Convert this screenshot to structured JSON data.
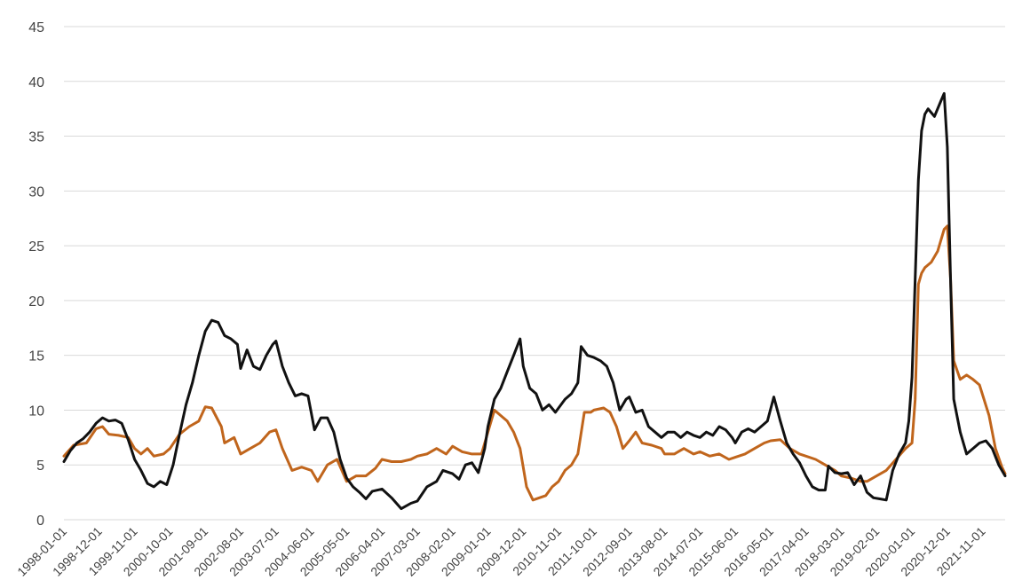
{
  "chart_data": {
    "type": "line",
    "title": "",
    "xlabel": "",
    "ylabel": "",
    "ylim": [
      0,
      45
    ],
    "y_ticks": [
      0,
      5,
      10,
      15,
      20,
      25,
      30,
      35,
      40,
      45
    ],
    "grid": "horizontal",
    "x_range": [
      "1998-01-01",
      "2022-06-01"
    ],
    "x_tick_labels": [
      "1998-01-01",
      "1998-12-01",
      "1999-11-01",
      "2000-10-01",
      "2001-09-01",
      "2002-08-01",
      "2003-07-01",
      "2004-06-01",
      "2005-05-01",
      "2006-04-01",
      "2007-03-01",
      "2008-02-01",
      "2009-01-01",
      "2009-12-01",
      "2010-11-01",
      "2011-10-01",
      "2012-09-01",
      "2013-08-01",
      "2014-07-01",
      "2015-06-01",
      "2016-05-01",
      "2017-04-01",
      "2018-03-01",
      "2019-02-01",
      "2020-01-01",
      "2020-12-01",
      "2021-11-01"
    ],
    "series": [
      {
        "color": "#111111",
        "points": [
          [
            "1998-01-01",
            5.3
          ],
          [
            "1998-03-01",
            6.3
          ],
          [
            "1998-05-01",
            7.0
          ],
          [
            "1998-07-01",
            7.4
          ],
          [
            "1998-09-01",
            8.0
          ],
          [
            "1998-11-01",
            8.8
          ],
          [
            "1999-01-01",
            9.3
          ],
          [
            "1999-03-01",
            9.0
          ],
          [
            "1999-05-01",
            9.1
          ],
          [
            "1999-07-01",
            8.8
          ],
          [
            "1999-09-01",
            7.3
          ],
          [
            "1999-11-01",
            5.5
          ],
          [
            "2000-01-01",
            4.5
          ],
          [
            "2000-03-01",
            3.3
          ],
          [
            "2000-05-01",
            3.0
          ],
          [
            "2000-07-01",
            3.5
          ],
          [
            "2000-09-01",
            3.2
          ],
          [
            "2000-11-01",
            5.0
          ],
          [
            "2001-01-01",
            7.8
          ],
          [
            "2001-03-01",
            10.5
          ],
          [
            "2001-05-01",
            12.5
          ],
          [
            "2001-07-01",
            15.0
          ],
          [
            "2001-09-01",
            17.2
          ],
          [
            "2001-11-01",
            18.2
          ],
          [
            "2002-01-01",
            18.0
          ],
          [
            "2002-03-01",
            16.8
          ],
          [
            "2002-05-01",
            16.5
          ],
          [
            "2002-07-01",
            16.0
          ],
          [
            "2002-08-01",
            13.8
          ],
          [
            "2002-10-01",
            15.5
          ],
          [
            "2002-12-01",
            14.0
          ],
          [
            "2003-02-01",
            13.7
          ],
          [
            "2003-04-01",
            15.0
          ],
          [
            "2003-06-01",
            16.0
          ],
          [
            "2003-07-01",
            16.3
          ],
          [
            "2003-09-01",
            14.0
          ],
          [
            "2003-11-01",
            12.5
          ],
          [
            "2004-01-01",
            11.3
          ],
          [
            "2004-03-01",
            11.5
          ],
          [
            "2004-05-01",
            11.3
          ],
          [
            "2004-07-01",
            8.2
          ],
          [
            "2004-09-01",
            9.3
          ],
          [
            "2004-11-01",
            9.3
          ],
          [
            "2005-01-01",
            8.0
          ],
          [
            "2005-03-01",
            5.5
          ],
          [
            "2005-05-01",
            3.8
          ],
          [
            "2005-07-01",
            3.0
          ],
          [
            "2005-09-01",
            2.5
          ],
          [
            "2005-11-01",
            1.9
          ],
          [
            "2006-01-01",
            2.6
          ],
          [
            "2006-04-01",
            2.8
          ],
          [
            "2006-07-01",
            2.0
          ],
          [
            "2006-10-01",
            1.0
          ],
          [
            "2007-01-01",
            1.5
          ],
          [
            "2007-03-01",
            1.7
          ],
          [
            "2007-06-01",
            3.0
          ],
          [
            "2007-09-01",
            3.5
          ],
          [
            "2007-11-01",
            4.5
          ],
          [
            "2008-02-01",
            4.2
          ],
          [
            "2008-04-01",
            3.7
          ],
          [
            "2008-06-01",
            5.0
          ],
          [
            "2008-08-01",
            5.2
          ],
          [
            "2008-10-01",
            4.3
          ],
          [
            "2008-12-01",
            6.5
          ],
          [
            "2009-01-01",
            8.5
          ],
          [
            "2009-03-01",
            11.0
          ],
          [
            "2009-05-01",
            12.0
          ],
          [
            "2009-07-01",
            13.5
          ],
          [
            "2009-09-01",
            15.0
          ],
          [
            "2009-11-01",
            16.5
          ],
          [
            "2009-12-01",
            14.0
          ],
          [
            "2010-02-01",
            12.0
          ],
          [
            "2010-04-01",
            11.5
          ],
          [
            "2010-06-01",
            10.0
          ],
          [
            "2010-08-01",
            10.5
          ],
          [
            "2010-10-01",
            9.8
          ],
          [
            "2010-11-01",
            10.2
          ],
          [
            "2011-01-01",
            11.0
          ],
          [
            "2011-03-01",
            11.5
          ],
          [
            "2011-05-01",
            12.5
          ],
          [
            "2011-06-01",
            15.8
          ],
          [
            "2011-08-01",
            15.0
          ],
          [
            "2011-10-01",
            14.8
          ],
          [
            "2011-12-01",
            14.5
          ],
          [
            "2012-02-01",
            14.0
          ],
          [
            "2012-04-01",
            12.5
          ],
          [
            "2012-06-01",
            10.0
          ],
          [
            "2012-08-01",
            11.0
          ],
          [
            "2012-09-01",
            11.2
          ],
          [
            "2012-11-01",
            9.8
          ],
          [
            "2013-01-01",
            10.0
          ],
          [
            "2013-03-01",
            8.5
          ],
          [
            "2013-05-01",
            8.0
          ],
          [
            "2013-07-01",
            7.5
          ],
          [
            "2013-09-01",
            8.0
          ],
          [
            "2013-11-01",
            8.0
          ],
          [
            "2014-01-01",
            7.5
          ],
          [
            "2014-03-01",
            8.0
          ],
          [
            "2014-05-01",
            7.7
          ],
          [
            "2014-07-01",
            7.5
          ],
          [
            "2014-09-01",
            8.0
          ],
          [
            "2014-11-01",
            7.7
          ],
          [
            "2015-01-01",
            8.5
          ],
          [
            "2015-03-01",
            8.2
          ],
          [
            "2015-05-01",
            7.5
          ],
          [
            "2015-06-01",
            7.0
          ],
          [
            "2015-08-01",
            8.0
          ],
          [
            "2015-10-01",
            8.3
          ],
          [
            "2015-12-01",
            8.0
          ],
          [
            "2016-02-01",
            8.5
          ],
          [
            "2016-04-01",
            9.0
          ],
          [
            "2016-06-01",
            11.2
          ],
          [
            "2016-08-01",
            9.0
          ],
          [
            "2016-10-01",
            7.0
          ],
          [
            "2016-12-01",
            6.0
          ],
          [
            "2017-02-01",
            5.2
          ],
          [
            "2017-04-01",
            4.0
          ],
          [
            "2017-06-01",
            3.0
          ],
          [
            "2017-08-01",
            2.7
          ],
          [
            "2017-10-01",
            2.7
          ],
          [
            "2017-11-01",
            4.9
          ],
          [
            "2018-01-01",
            4.3
          ],
          [
            "2018-03-01",
            4.2
          ],
          [
            "2018-05-01",
            4.3
          ],
          [
            "2018-07-01",
            3.2
          ],
          [
            "2018-09-01",
            4.0
          ],
          [
            "2018-11-01",
            2.5
          ],
          [
            "2019-01-01",
            2.0
          ],
          [
            "2019-03-01",
            1.9
          ],
          [
            "2019-05-01",
            1.8
          ],
          [
            "2019-07-01",
            4.5
          ],
          [
            "2019-09-01",
            6.0
          ],
          [
            "2019-11-01",
            7.0
          ],
          [
            "2019-12-01",
            9.0
          ],
          [
            "2020-01-01",
            13.0
          ],
          [
            "2020-02-01",
            22.0
          ],
          [
            "2020-03-01",
            31.0
          ],
          [
            "2020-04-01",
            35.5
          ],
          [
            "2020-05-01",
            37.0
          ],
          [
            "2020-06-01",
            37.5
          ],
          [
            "2020-08-01",
            36.8
          ],
          [
            "2020-10-01",
            38.2
          ],
          [
            "2020-11-01",
            38.9
          ],
          [
            "2020-12-01",
            34.0
          ],
          [
            "2021-01-01",
            22.0
          ],
          [
            "2021-02-01",
            11.0
          ],
          [
            "2021-04-01",
            8.0
          ],
          [
            "2021-06-01",
            6.0
          ],
          [
            "2021-08-01",
            6.5
          ],
          [
            "2021-10-01",
            7.0
          ],
          [
            "2021-12-01",
            7.2
          ],
          [
            "2022-02-01",
            6.5
          ],
          [
            "2022-04-01",
            5.0
          ],
          [
            "2022-06-01",
            4.0
          ]
        ]
      },
      {
        "color": "#c0651c",
        "points": [
          [
            "1998-01-01",
            5.8
          ],
          [
            "1998-04-01",
            6.8
          ],
          [
            "1998-08-01",
            7.0
          ],
          [
            "1998-11-01",
            8.3
          ],
          [
            "1999-01-01",
            8.5
          ],
          [
            "1999-03-01",
            7.8
          ],
          [
            "1999-06-01",
            7.7
          ],
          [
            "1999-09-01",
            7.5
          ],
          [
            "1999-11-01",
            6.5
          ],
          [
            "2000-01-01",
            6.0
          ],
          [
            "2000-03-01",
            6.5
          ],
          [
            "2000-05-01",
            5.8
          ],
          [
            "2000-08-01",
            6.0
          ],
          [
            "2000-10-01",
            6.5
          ],
          [
            "2001-01-01",
            7.8
          ],
          [
            "2001-04-01",
            8.5
          ],
          [
            "2001-07-01",
            9.0
          ],
          [
            "2001-09-01",
            10.3
          ],
          [
            "2001-11-01",
            10.2
          ],
          [
            "2002-02-01",
            8.5
          ],
          [
            "2002-03-01",
            7.0
          ],
          [
            "2002-06-01",
            7.5
          ],
          [
            "2002-08-01",
            6.0
          ],
          [
            "2002-11-01",
            6.5
          ],
          [
            "2003-02-01",
            7.0
          ],
          [
            "2003-05-01",
            8.0
          ],
          [
            "2003-07-01",
            8.2
          ],
          [
            "2003-09-01",
            6.5
          ],
          [
            "2003-12-01",
            4.5
          ],
          [
            "2004-03-01",
            4.8
          ],
          [
            "2004-06-01",
            4.5
          ],
          [
            "2004-08-01",
            3.5
          ],
          [
            "2004-11-01",
            5.0
          ],
          [
            "2005-02-01",
            5.5
          ],
          [
            "2005-05-01",
            3.5
          ],
          [
            "2005-08-01",
            4.0
          ],
          [
            "2005-11-01",
            4.0
          ],
          [
            "2006-02-01",
            4.7
          ],
          [
            "2006-04-01",
            5.5
          ],
          [
            "2006-07-01",
            5.3
          ],
          [
            "2006-10-01",
            5.3
          ],
          [
            "2007-01-01",
            5.5
          ],
          [
            "2007-03-01",
            5.8
          ],
          [
            "2007-06-01",
            6.0
          ],
          [
            "2007-09-01",
            6.5
          ],
          [
            "2007-12-01",
            6.0
          ],
          [
            "2008-02-01",
            6.7
          ],
          [
            "2008-05-01",
            6.2
          ],
          [
            "2008-08-01",
            6.0
          ],
          [
            "2008-11-01",
            6.0
          ],
          [
            "2009-01-01",
            8.0
          ],
          [
            "2009-03-01",
            10.0
          ],
          [
            "2009-05-01",
            9.5
          ],
          [
            "2009-07-01",
            9.0
          ],
          [
            "2009-09-01",
            8.0
          ],
          [
            "2009-11-01",
            6.5
          ],
          [
            "2010-01-01",
            3.0
          ],
          [
            "2010-03-01",
            1.8
          ],
          [
            "2010-05-01",
            2.0
          ],
          [
            "2010-07-01",
            2.2
          ],
          [
            "2010-09-01",
            3.0
          ],
          [
            "2010-11-01",
            3.5
          ],
          [
            "2011-01-01",
            4.5
          ],
          [
            "2011-03-01",
            5.0
          ],
          [
            "2011-05-01",
            6.0
          ],
          [
            "2011-07-01",
            9.8
          ],
          [
            "2011-09-01",
            9.8
          ],
          [
            "2011-10-01",
            10.0
          ],
          [
            "2012-01-01",
            10.2
          ],
          [
            "2012-03-01",
            9.8
          ],
          [
            "2012-05-01",
            8.5
          ],
          [
            "2012-07-01",
            6.5
          ],
          [
            "2012-09-01",
            7.2
          ],
          [
            "2012-11-01",
            8.0
          ],
          [
            "2013-01-01",
            7.0
          ],
          [
            "2013-04-01",
            6.8
          ],
          [
            "2013-07-01",
            6.5
          ],
          [
            "2013-08-01",
            6.0
          ],
          [
            "2013-11-01",
            6.0
          ],
          [
            "2014-02-01",
            6.5
          ],
          [
            "2014-05-01",
            6.0
          ],
          [
            "2014-07-01",
            6.2
          ],
          [
            "2014-10-01",
            5.8
          ],
          [
            "2015-01-01",
            6.0
          ],
          [
            "2015-04-01",
            5.5
          ],
          [
            "2015-06-01",
            5.7
          ],
          [
            "2015-09-01",
            6.0
          ],
          [
            "2015-12-01",
            6.5
          ],
          [
            "2016-03-01",
            7.0
          ],
          [
            "2016-05-01",
            7.2
          ],
          [
            "2016-08-01",
            7.3
          ],
          [
            "2016-11-01",
            6.5
          ],
          [
            "2017-02-01",
            6.0
          ],
          [
            "2017-04-01",
            5.8
          ],
          [
            "2017-07-01",
            5.5
          ],
          [
            "2017-10-01",
            5.0
          ],
          [
            "2018-01-01",
            4.5
          ],
          [
            "2018-03-01",
            4.0
          ],
          [
            "2018-06-01",
            3.8
          ],
          [
            "2018-09-01",
            3.5
          ],
          [
            "2018-11-01",
            3.5
          ],
          [
            "2019-02-01",
            4.0
          ],
          [
            "2019-05-01",
            4.5
          ],
          [
            "2019-08-01",
            5.5
          ],
          [
            "2019-11-01",
            6.5
          ],
          [
            "2020-01-01",
            7.0
          ],
          [
            "2020-02-01",
            11.0
          ],
          [
            "2020-03-01",
            21.5
          ],
          [
            "2020-04-01",
            22.5
          ],
          [
            "2020-05-01",
            23.0
          ],
          [
            "2020-07-01",
            23.5
          ],
          [
            "2020-09-01",
            24.5
          ],
          [
            "2020-11-01",
            26.5
          ],
          [
            "2020-12-01",
            26.8
          ],
          [
            "2021-01-01",
            22.0
          ],
          [
            "2021-02-01",
            14.5
          ],
          [
            "2021-04-01",
            12.8
          ],
          [
            "2021-06-01",
            13.2
          ],
          [
            "2021-08-01",
            12.8
          ],
          [
            "2021-10-01",
            12.3
          ],
          [
            "2022-01-01",
            9.5
          ],
          [
            "2022-03-01",
            6.5
          ],
          [
            "2022-05-01",
            4.8
          ],
          [
            "2022-06-01",
            4.2
          ]
        ]
      }
    ]
  }
}
